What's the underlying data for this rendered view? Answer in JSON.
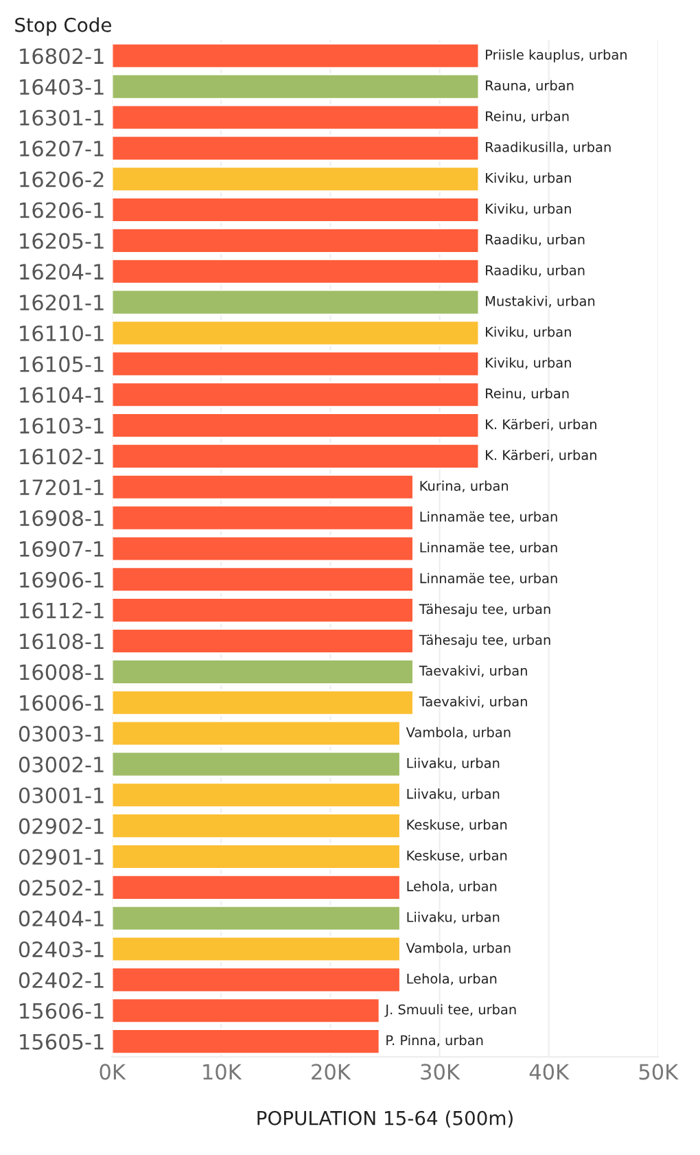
{
  "chart_data": {
    "type": "bar",
    "orientation": "horizontal",
    "ylabel": "Stop Code",
    "xlabel": "POPULATION 15-64 (500m)",
    "categories": [
      "16802-1",
      "16403-1",
      "16301-1",
      "16207-1",
      "16206-2",
      "16206-1",
      "16205-1",
      "16204-1",
      "16201-1",
      "16110-1",
      "16105-1",
      "16104-1",
      "16103-1",
      "16102-1",
      "17201-1",
      "16908-1",
      "16907-1",
      "16906-1",
      "16112-1",
      "16108-1",
      "16008-1",
      "16006-1",
      "03003-1",
      "03002-1",
      "03001-1",
      "02902-1",
      "02901-1",
      "02502-1",
      "02404-1",
      "02403-1",
      "02402-1",
      "15606-1",
      "15605-1"
    ],
    "values": [
      33600,
      33600,
      33600,
      33600,
      33600,
      33600,
      33600,
      33600,
      33600,
      33600,
      33600,
      33600,
      33600,
      33600,
      27600,
      27600,
      27600,
      27600,
      27600,
      27600,
      27600,
      27600,
      26400,
      26400,
      26400,
      26400,
      26400,
      26400,
      26400,
      26400,
      26400,
      24500,
      24500
    ],
    "colors": [
      "#fe5c3a",
      "#9fbd66",
      "#fe5c3a",
      "#fe5c3a",
      "#fbbf32",
      "#fe5c3a",
      "#fe5c3a",
      "#fe5c3a",
      "#9fbd66",
      "#fbbf32",
      "#fe5c3a",
      "#fe5c3a",
      "#fe5c3a",
      "#fe5c3a",
      "#fe5c3a",
      "#fe5c3a",
      "#fe5c3a",
      "#fe5c3a",
      "#fe5c3a",
      "#fe5c3a",
      "#9fbd66",
      "#fbbf32",
      "#fbbf32",
      "#9fbd66",
      "#fbbf32",
      "#fbbf32",
      "#fbbf32",
      "#fe5c3a",
      "#9fbd66",
      "#fbbf32",
      "#fe5c3a",
      "#fe5c3a",
      "#fe5c3a"
    ],
    "xlim": [
      0,
      50000
    ],
    "xticks": [
      {
        "value": 0,
        "label": "0K"
      },
      {
        "value": 10000,
        "label": "10K"
      },
      {
        "value": 20000,
        "label": "20K"
      },
      {
        "value": 30000,
        "label": "30K"
      },
      {
        "value": 40000,
        "label": "40K"
      },
      {
        "value": 50000,
        "label": "50K"
      }
    ],
    "grid": "x",
    "annotations": [
      {
        "text": "Priisle kauplus, urban",
        "x": 33600,
        "y": "16802-1"
      },
      {
        "text": "Rauna, urban",
        "x": 33600,
        "y": "16403-1"
      },
      {
        "text": "Reinu, urban",
        "x": 33600,
        "y": "16301-1"
      },
      {
        "text": "Raadikusilla, urban",
        "x": 33600,
        "y": "16207-1"
      },
      {
        "text": "Kiviku, urban",
        "x": 33600,
        "y": "16206-2"
      },
      {
        "text": "Kiviku, urban",
        "x": 33600,
        "y": "16206-1"
      },
      {
        "text": "Raadiku, urban",
        "x": 33600,
        "y": "16205-1"
      },
      {
        "text": "Raadiku, urban",
        "x": 33600,
        "y": "16204-1"
      },
      {
        "text": "Mustakivi, urban",
        "x": 33600,
        "y": "16201-1"
      },
      {
        "text": "Kiviku, urban",
        "x": 33600,
        "y": "16110-1"
      },
      {
        "text": "Kiviku, urban",
        "x": 33600,
        "y": "16105-1"
      },
      {
        "text": "Reinu, urban",
        "x": 33600,
        "y": "16104-1"
      },
      {
        "text": "K. Kärberi, urban",
        "x": 33600,
        "y": "16103-1"
      },
      {
        "text": "K. Kärberi, urban",
        "x": 33600,
        "y": "16102-1"
      },
      {
        "text": "Kurina, urban",
        "x": 27600,
        "y": "17201-1"
      },
      {
        "text": "Linnamäe tee, urban",
        "x": 27600,
        "y": "16908-1"
      },
      {
        "text": "Linnamäe tee, urban",
        "x": 27600,
        "y": "16907-1"
      },
      {
        "text": "Linnamäe tee, urban",
        "x": 27600,
        "y": "16906-1"
      },
      {
        "text": "Tähesaju tee, urban",
        "x": 27600,
        "y": "16112-1"
      },
      {
        "text": "Tähesaju tee, urban",
        "x": 27600,
        "y": "16108-1"
      },
      {
        "text": "Taevakivi, urban",
        "x": 27600,
        "y": "16008-1"
      },
      {
        "text": "Taevakivi, urban",
        "x": 27600,
        "y": "16006-1"
      },
      {
        "text": "Vambola, urban",
        "x": 26400,
        "y": "03003-1"
      },
      {
        "text": "Liivaku, urban",
        "x": 26400,
        "y": "03002-1"
      },
      {
        "text": "Liivaku, urban",
        "x": 26400,
        "y": "03001-1"
      },
      {
        "text": "Keskuse, urban",
        "x": 26400,
        "y": "02902-1"
      },
      {
        "text": "Keskuse, urban",
        "x": 26400,
        "y": "02901-1"
      },
      {
        "text": "Lehola, urban",
        "x": 26400,
        "y": "02502-1"
      },
      {
        "text": "Liivaku, urban",
        "x": 26400,
        "y": "02404-1"
      },
      {
        "text": "Vambola, urban",
        "x": 26400,
        "y": "02403-1"
      },
      {
        "text": "Lehola, urban",
        "x": 26400,
        "y": "02402-1"
      },
      {
        "text": "J. Smuuli tee, urban",
        "x": 24500,
        "y": "15606-1"
      },
      {
        "text": "P. Pinna, urban",
        "x": 24500,
        "y": "15605-1"
      }
    ]
  }
}
